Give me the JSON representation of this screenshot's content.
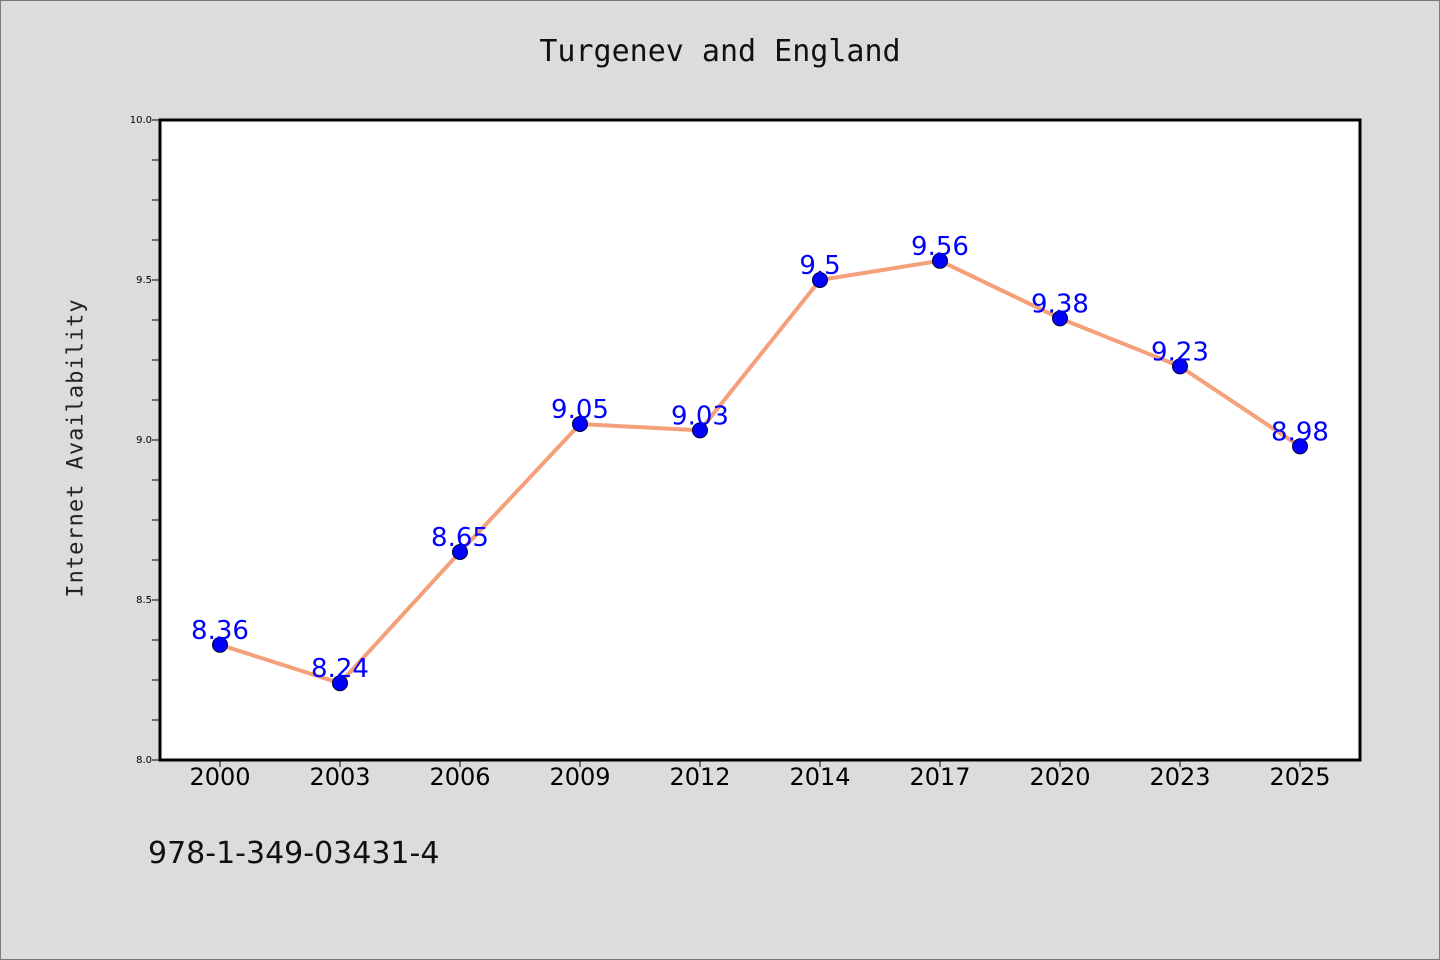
{
  "chart_data": {
    "type": "line",
    "title": "Turgenev and England",
    "xlabel": "",
    "ylabel": "Internet Availability",
    "categories": [
      "2000",
      "2003",
      "2006",
      "2009",
      "2012",
      "2014",
      "2017",
      "2020",
      "2023",
      "2025"
    ],
    "series": [
      {
        "values": [
          8.36,
          8.24,
          8.65,
          9.05,
          9.03,
          9.5,
          9.56,
          9.38,
          9.23,
          8.98
        ],
        "line_color": "#f4a07a",
        "marker_color": "#0000ff"
      }
    ],
    "data_labels": [
      "8.36",
      "8.24",
      "8.65",
      "9.05",
      "9.03",
      "9.5",
      "9.56",
      "9.38",
      "9.23",
      "8.98"
    ],
    "ylim": [
      8.0,
      10.0
    ],
    "y_ticks": [
      "8.0",
      "8.5",
      "9.0",
      "9.5",
      "10.0"
    ],
    "grid": false,
    "background": "#dcdcdc",
    "plot_background": "#ffffff"
  },
  "footer": {
    "isbn": "978-1-349-03431-4"
  }
}
